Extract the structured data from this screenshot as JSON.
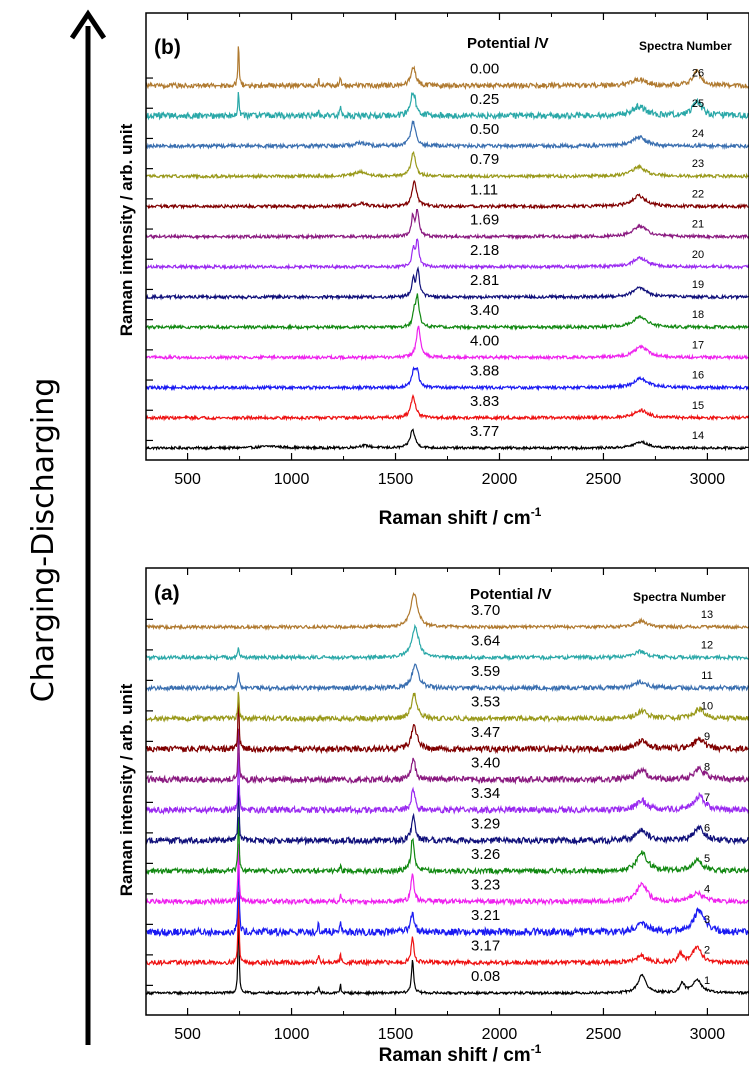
{
  "figure": {
    "side_label": "Charging-Discharging",
    "colors": [
      "#000000",
      "#ee1111",
      "#1a1af2",
      "#ee22ee",
      "#118811",
      "#10107a",
      "#9a2af0",
      "#8a1a80",
      "#800000",
      "#99991a",
      "#3a6fb0",
      "#2aa8a8",
      "#b07a30"
    ]
  },
  "chart_data": [
    {
      "panel": "(b)",
      "type": "line",
      "title": "",
      "xlabel": "Raman shift / cm-1",
      "ylabel": "Raman intensity / arb. unit",
      "xlim": [
        300,
        3200
      ],
      "xticks": [
        500,
        1000,
        1500,
        2000,
        2500,
        3000
      ],
      "ylim": [
        0,
        13.8
      ],
      "legend_header_potential": "Potential /V",
      "legend_header_number": "Spectra Number",
      "series": [
        {
          "name": "14",
          "potential": "3.77",
          "baseline": 0,
          "peaks": [
            {
              "x": 1582,
              "h": 0.6,
              "w": 14
            },
            {
              "x": 2680,
              "h": 0.2,
              "w": 40
            },
            {
              "x": 1350,
              "h": 0.08,
              "w": 35
            },
            {
              "x": 900,
              "h": 0.06,
              "w": 60
            }
          ],
          "noise": 0.04
        },
        {
          "name": "15",
          "potential": "3.83",
          "baseline": 1,
          "peaks": [
            {
              "x": 1585,
              "h": 0.7,
              "w": 14
            },
            {
              "x": 2680,
              "h": 0.25,
              "w": 40
            }
          ],
          "noise": 0.05
        },
        {
          "name": "16",
          "potential": "3.88",
          "baseline": 2,
          "peaks": [
            {
              "x": 1588,
              "h": 0.55,
              "w": 12
            },
            {
              "x": 1605,
              "h": 0.5,
              "w": 8
            },
            {
              "x": 2680,
              "h": 0.3,
              "w": 40
            }
          ],
          "noise": 0.05
        },
        {
          "name": "17",
          "potential": "4.00",
          "baseline": 3,
          "peaks": [
            {
              "x": 1610,
              "h": 1.0,
              "w": 12
            },
            {
              "x": 2680,
              "h": 0.35,
              "w": 40
            }
          ],
          "noise": 0.05
        },
        {
          "name": "18",
          "potential": "3.40",
          "baseline": 4,
          "peaks": [
            {
              "x": 1605,
              "h": 1.0,
              "w": 10
            },
            {
              "x": 1590,
              "h": 0.4,
              "w": 8
            },
            {
              "x": 2675,
              "h": 0.35,
              "w": 40
            }
          ],
          "noise": 0.05
        },
        {
          "name": "19",
          "potential": "2.81",
          "baseline": 5,
          "peaks": [
            {
              "x": 1608,
              "h": 0.9,
              "w": 9
            },
            {
              "x": 1585,
              "h": 0.6,
              "w": 8
            },
            {
              "x": 2675,
              "h": 0.3,
              "w": 40
            }
          ],
          "noise": 0.05
        },
        {
          "name": "20",
          "potential": "2.18",
          "baseline": 6,
          "peaks": [
            {
              "x": 1605,
              "h": 0.85,
              "w": 9
            },
            {
              "x": 1585,
              "h": 0.55,
              "w": 8
            },
            {
              "x": 2675,
              "h": 0.3,
              "w": 40
            }
          ],
          "noise": 0.05
        },
        {
          "name": "21",
          "potential": "1.69",
          "baseline": 7,
          "peaks": [
            {
              "x": 1605,
              "h": 0.85,
              "w": 9
            },
            {
              "x": 1583,
              "h": 0.65,
              "w": 8
            },
            {
              "x": 2675,
              "h": 0.35,
              "w": 40
            }
          ],
          "noise": 0.05
        },
        {
          "name": "22",
          "potential": "1.11",
          "baseline": 8,
          "peaks": [
            {
              "x": 1590,
              "h": 0.85,
              "w": 13
            },
            {
              "x": 2670,
              "h": 0.35,
              "w": 40
            },
            {
              "x": 1335,
              "h": 0.1,
              "w": 30
            }
          ],
          "noise": 0.05
        },
        {
          "name": "23",
          "potential": "0.79",
          "baseline": 9,
          "peaks": [
            {
              "x": 1585,
              "h": 0.8,
              "w": 13
            },
            {
              "x": 2670,
              "h": 0.3,
              "w": 40
            },
            {
              "x": 1330,
              "h": 0.15,
              "w": 30
            }
          ],
          "noise": 0.05
        },
        {
          "name": "24",
          "potential": "0.50",
          "baseline": 10,
          "peaks": [
            {
              "x": 1585,
              "h": 0.8,
              "w": 14
            },
            {
              "x": 2670,
              "h": 0.3,
              "w": 40
            },
            {
              "x": 1330,
              "h": 0.1,
              "w": 30
            }
          ],
          "noise": 0.06
        },
        {
          "name": "25",
          "potential": "0.25",
          "baseline": 11,
          "peaks": [
            {
              "x": 745,
              "h": 0.9,
              "w": 3
            },
            {
              "x": 1235,
              "h": 0.35,
              "w": 3
            },
            {
              "x": 1130,
              "h": 0.25,
              "w": 3
            },
            {
              "x": 1585,
              "h": 0.8,
              "w": 14
            },
            {
              "x": 2950,
              "h": 0.5,
              "w": 25
            },
            {
              "x": 2670,
              "h": 0.3,
              "w": 40
            }
          ],
          "noise": 0.1
        },
        {
          "name": "26",
          "potential": "0.00",
          "baseline": 12,
          "peaks": [
            {
              "x": 745,
              "h": 1.5,
              "w": 3
            },
            {
              "x": 1130,
              "h": 0.2,
              "w": 3
            },
            {
              "x": 1235,
              "h": 0.3,
              "w": 3
            },
            {
              "x": 1585,
              "h": 0.6,
              "w": 14
            },
            {
              "x": 2950,
              "h": 0.45,
              "w": 25
            },
            {
              "x": 2670,
              "h": 0.2,
              "w": 40
            }
          ],
          "noise": 0.08
        }
      ]
    },
    {
      "panel": "(a)",
      "type": "line",
      "title": "",
      "xlabel": "Raman shift / cm-1",
      "ylabel": "Raman intensity / arb. unit",
      "xlim": [
        300,
        3200
      ],
      "xticks": [
        500,
        1000,
        1500,
        2000,
        2500,
        3000
      ],
      "ylim": [
        0,
        13.8
      ],
      "legend_header_potential": "Potential /V",
      "legend_header_number": "Spectra Number",
      "series": [
        {
          "name": "1",
          "potential": "0.08",
          "baseline": 0,
          "peaks": [
            {
              "x": 745,
              "h": 3.0,
              "w": 3
            },
            {
              "x": 1582,
              "h": 1.1,
              "w": 6
            },
            {
              "x": 2685,
              "h": 0.6,
              "w": 22
            },
            {
              "x": 2950,
              "h": 0.45,
              "w": 25
            },
            {
              "x": 2880,
              "h": 0.3,
              "w": 12
            },
            {
              "x": 1235,
              "h": 0.3,
              "w": 3
            },
            {
              "x": 1130,
              "h": 0.25,
              "w": 3
            }
          ],
          "noise": 0.04
        },
        {
          "name": "2",
          "potential": "3.17",
          "baseline": 1,
          "peaks": [
            {
              "x": 745,
              "h": 2.5,
              "w": 3
            },
            {
              "x": 1582,
              "h": 0.8,
              "w": 8
            },
            {
              "x": 2950,
              "h": 0.5,
              "w": 25
            },
            {
              "x": 2870,
              "h": 0.3,
              "w": 12
            },
            {
              "x": 1235,
              "h": 0.3,
              "w": 3
            },
            {
              "x": 1130,
              "h": 0.25,
              "w": 3
            },
            {
              "x": 2680,
              "h": 0.2,
              "w": 30
            }
          ],
          "noise": 0.07
        },
        {
          "name": "3",
          "potential": "3.21",
          "baseline": 2,
          "peaks": [
            {
              "x": 745,
              "h": 2.9,
              "w": 3
            },
            {
              "x": 1582,
              "h": 0.7,
              "w": 9
            },
            {
              "x": 2960,
              "h": 0.7,
              "w": 30
            },
            {
              "x": 1130,
              "h": 0.4,
              "w": 3
            },
            {
              "x": 1235,
              "h": 0.45,
              "w": 3
            },
            {
              "x": 2680,
              "h": 0.3,
              "w": 30
            }
          ],
          "noise": 0.12
        },
        {
          "name": "4",
          "potential": "3.23",
          "baseline": 3,
          "peaks": [
            {
              "x": 745,
              "h": 2.1,
              "w": 3
            },
            {
              "x": 1582,
              "h": 0.9,
              "w": 9
            },
            {
              "x": 2685,
              "h": 0.55,
              "w": 30
            },
            {
              "x": 2950,
              "h": 0.3,
              "w": 30
            },
            {
              "x": 1235,
              "h": 0.2,
              "w": 3
            }
          ],
          "noise": 0.08
        },
        {
          "name": "5",
          "potential": "3.26",
          "baseline": 4,
          "peaks": [
            {
              "x": 745,
              "h": 2.0,
              "w": 3
            },
            {
              "x": 1582,
              "h": 1.1,
              "w": 9
            },
            {
              "x": 2685,
              "h": 0.6,
              "w": 30
            },
            {
              "x": 2950,
              "h": 0.35,
              "w": 30
            },
            {
              "x": 1235,
              "h": 0.2,
              "w": 3
            }
          ],
          "noise": 0.08
        },
        {
          "name": "6",
          "potential": "3.29",
          "baseline": 5,
          "peaks": [
            {
              "x": 745,
              "h": 2.1,
              "w": 3
            },
            {
              "x": 1585,
              "h": 0.8,
              "w": 10
            },
            {
              "x": 2685,
              "h": 0.35,
              "w": 30
            },
            {
              "x": 2960,
              "h": 0.4,
              "w": 30
            }
          ],
          "noise": 0.1
        },
        {
          "name": "7",
          "potential": "3.34",
          "baseline": 6,
          "peaks": [
            {
              "x": 745,
              "h": 2.0,
              "w": 3
            },
            {
              "x": 1585,
              "h": 0.7,
              "w": 10
            },
            {
              "x": 2685,
              "h": 0.3,
              "w": 30
            },
            {
              "x": 2960,
              "h": 0.45,
              "w": 30
            }
          ],
          "noise": 0.1
        },
        {
          "name": "8",
          "potential": "3.40",
          "baseline": 7,
          "peaks": [
            {
              "x": 745,
              "h": 1.8,
              "w": 3
            },
            {
              "x": 1585,
              "h": 0.7,
              "w": 12
            },
            {
              "x": 2685,
              "h": 0.3,
              "w": 30
            },
            {
              "x": 2960,
              "h": 0.35,
              "w": 30
            }
          ],
          "noise": 0.1
        },
        {
          "name": "9",
          "potential": "3.47",
          "baseline": 8,
          "peaks": [
            {
              "x": 745,
              "h": 1.9,
              "w": 3
            },
            {
              "x": 1590,
              "h": 0.8,
              "w": 15
            },
            {
              "x": 2685,
              "h": 0.3,
              "w": 30
            },
            {
              "x": 2960,
              "h": 0.3,
              "w": 30
            }
          ],
          "noise": 0.1
        },
        {
          "name": "10",
          "potential": "3.53",
          "baseline": 9,
          "peaks": [
            {
              "x": 745,
              "h": 1.0,
              "w": 3
            },
            {
              "x": 1590,
              "h": 0.8,
              "w": 15
            },
            {
              "x": 2685,
              "h": 0.25,
              "w": 30
            },
            {
              "x": 2960,
              "h": 0.3,
              "w": 30
            }
          ],
          "noise": 0.08
        },
        {
          "name": "11",
          "potential": "3.59",
          "baseline": 10,
          "peaks": [
            {
              "x": 745,
              "h": 0.6,
              "w": 4
            },
            {
              "x": 1595,
              "h": 0.8,
              "w": 18
            },
            {
              "x": 2680,
              "h": 0.2,
              "w": 35
            }
          ],
          "noise": 0.07
        },
        {
          "name": "12",
          "potential": "3.64",
          "baseline": 11,
          "peaks": [
            {
              "x": 745,
              "h": 0.3,
              "w": 4
            },
            {
              "x": 1595,
              "h": 1.0,
              "w": 20
            },
            {
              "x": 2680,
              "h": 0.2,
              "w": 35
            }
          ],
          "noise": 0.06
        },
        {
          "name": "13",
          "potential": "3.70",
          "baseline": 12,
          "peaks": [
            {
              "x": 1590,
              "h": 1.1,
              "w": 20
            },
            {
              "x": 2680,
              "h": 0.2,
              "w": 35
            }
          ],
          "noise": 0.05
        }
      ]
    }
  ]
}
